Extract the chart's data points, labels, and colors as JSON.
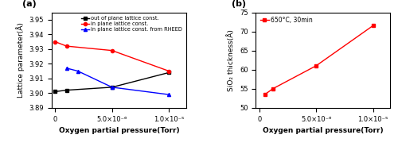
{
  "panel_a": {
    "title": "(a)",
    "xlabel": "Oxygen partial pressure(Torr)",
    "ylabel": "Lattice parameter(Å)",
    "xlim": [
      -3e-07,
      1.15e-05
    ],
    "ylim": [
      3.89,
      3.955
    ],
    "yticks": [
      3.89,
      3.9,
      3.91,
      3.92,
      3.93,
      3.94,
      3.95
    ],
    "xticks": [
      0,
      5e-06,
      1e-05
    ],
    "xtick_labels": [
      "0",
      "5.0×10⁻⁶",
      "1.0×10⁻⁵"
    ],
    "series": [
      {
        "label": "out of plane lattice const.",
        "color": "black",
        "marker": "s",
        "x": [
          0,
          1e-06,
          5e-06,
          1e-05
        ],
        "y": [
          3.901,
          3.902,
          3.904,
          3.914
        ]
      },
      {
        "label": "in plane lattice const.",
        "color": "red",
        "marker": "o",
        "x": [
          0,
          1e-06,
          5e-06,
          1e-05
        ],
        "y": [
          3.935,
          3.932,
          3.929,
          3.915
        ]
      },
      {
        "label": "in plane lattice const. from RHEED",
        "color": "blue",
        "marker": "^",
        "x": [
          1e-06,
          2e-06,
          5e-06,
          1e-05
        ],
        "y": [
          3.917,
          3.915,
          3.904,
          3.899
        ]
      }
    ]
  },
  "panel_b": {
    "title": "(b)",
    "xlabel": "Oxygen partial pressure(Torr)",
    "ylabel": "SiO₂ thickness(Å)",
    "xlim": [
      -3e-07,
      1.15e-05
    ],
    "ylim": [
      50,
      75
    ],
    "yticks": [
      50,
      55,
      60,
      65,
      70,
      75
    ],
    "xticks": [
      0,
      5e-06,
      1e-05
    ],
    "xtick_labels": [
      "0",
      "5.0×10⁻⁶",
      "1.0×10⁻⁵"
    ],
    "series": [
      {
        "label": "650°C, 30min",
        "color": "red",
        "marker": "s",
        "x": [
          5e-07,
          1.2e-06,
          5e-06,
          1e-05
        ],
        "y": [
          53.5,
          55.0,
          61.0,
          71.5
        ]
      }
    ]
  }
}
